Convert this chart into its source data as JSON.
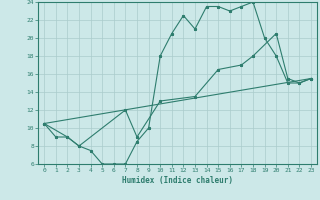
{
  "xlabel": "Humidex (Indice chaleur)",
  "xlim": [
    -0.5,
    23.5
  ],
  "ylim": [
    6,
    24
  ],
  "xticks": [
    0,
    1,
    2,
    3,
    4,
    5,
    6,
    7,
    8,
    9,
    10,
    11,
    12,
    13,
    14,
    15,
    16,
    17,
    18,
    19,
    20,
    21,
    22,
    23
  ],
  "yticks": [
    6,
    8,
    10,
    12,
    14,
    16,
    18,
    20,
    22,
    24
  ],
  "bg_color": "#cce8e8",
  "line_color": "#2e7d6e",
  "grid_color": "#aacccc",
  "line1_x": [
    0,
    1,
    2,
    3,
    4,
    5,
    6,
    7,
    8,
    9,
    10,
    11,
    12,
    13,
    14,
    15,
    16,
    17,
    18,
    19,
    20,
    21,
    22,
    23
  ],
  "line1_y": [
    10.5,
    9.0,
    9.0,
    8.0,
    7.5,
    6.0,
    6.0,
    6.0,
    8.5,
    10.0,
    18.0,
    20.5,
    22.5,
    21.0,
    23.5,
    23.5,
    23.0,
    23.5,
    24.0,
    20.0,
    18.0,
    15.0,
    15.0,
    15.5
  ],
  "line2_x": [
    0,
    2,
    3,
    7,
    8,
    10,
    13,
    15,
    17,
    18,
    20,
    21,
    22,
    23
  ],
  "line2_y": [
    10.5,
    9.0,
    8.0,
    12.0,
    9.0,
    13.0,
    13.5,
    16.5,
    17.0,
    18.0,
    20.5,
    15.5,
    15.0,
    15.5
  ],
  "line3_x": [
    0,
    23
  ],
  "line3_y": [
    10.5,
    15.5
  ]
}
